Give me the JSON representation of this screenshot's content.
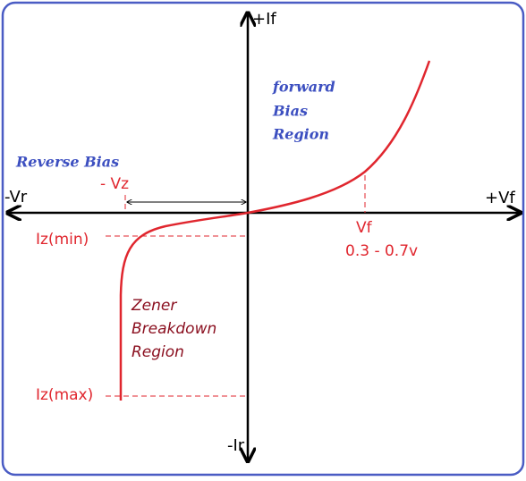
{
  "axes": {
    "positive_current": "+If",
    "negative_voltage": "-Vr",
    "positive_voltage": "+Vf",
    "negative_current": "-Ir"
  },
  "forward_region": {
    "lines": [
      "forward",
      "Bias",
      "Region"
    ]
  },
  "reverse_region": {
    "label": "Reverse Bias",
    "zener_voltage": "- Vz"
  },
  "current_labels": {
    "iz_min": "Iz(min)",
    "iz_max": "Iz(max)"
  },
  "forward_voltage": {
    "label": "Vf",
    "range": "0.3 - 0.7v"
  },
  "breakdown_region": {
    "lines": [
      "Zener",
      "Breakdown",
      "Region"
    ]
  }
}
